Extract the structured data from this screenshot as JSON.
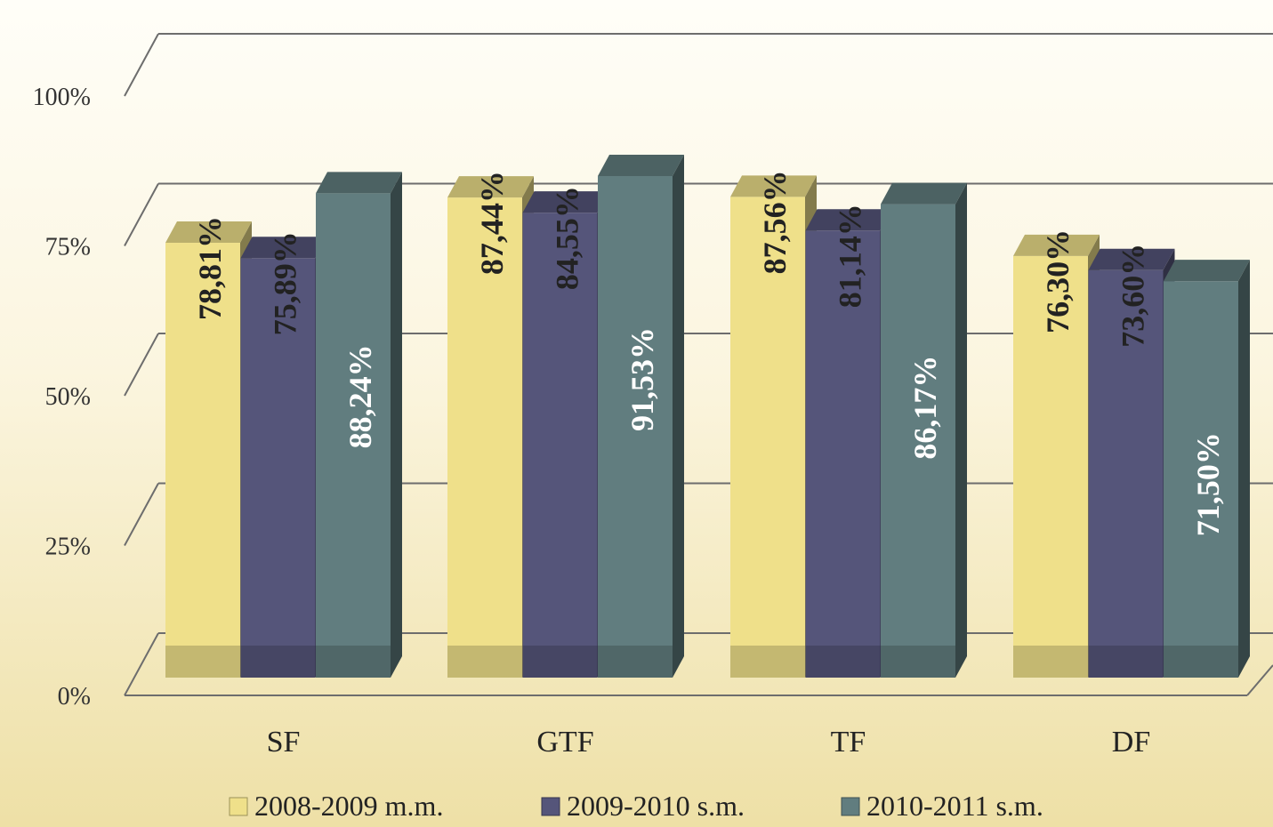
{
  "chart_data": {
    "type": "bar",
    "categories": [
      "SF",
      "GTF",
      "TF",
      "DF"
    ],
    "series": [
      {
        "name": "2008-2009  m.m.",
        "color": "#efe08a",
        "values": [
          78.81,
          87.44,
          87.56,
          76.3
        ],
        "labels": [
          "78,81%",
          "87,44%",
          "87,56%",
          "76,30%"
        ]
      },
      {
        "name": "2009-2010  s.m.",
        "color": "#55557a",
        "values": [
          75.89,
          84.55,
          81.14,
          73.6
        ],
        "labels": [
          "75,89%",
          "84,55%",
          "81,14%",
          "73,60%"
        ]
      },
      {
        "name": "2010-2011  s.m.",
        "color": "#617d7f",
        "values": [
          88.24,
          91.53,
          86.17,
          71.5
        ],
        "labels": [
          "88,24%",
          "91,53%",
          "86,17%",
          "71,50%"
        ]
      }
    ],
    "y_ticks": [
      "0%",
      "25%",
      "50%",
      "75%",
      "100%"
    ],
    "ylim": [
      0,
      100
    ],
    "grid": true,
    "legend_position": "bottom",
    "three_d": true
  }
}
